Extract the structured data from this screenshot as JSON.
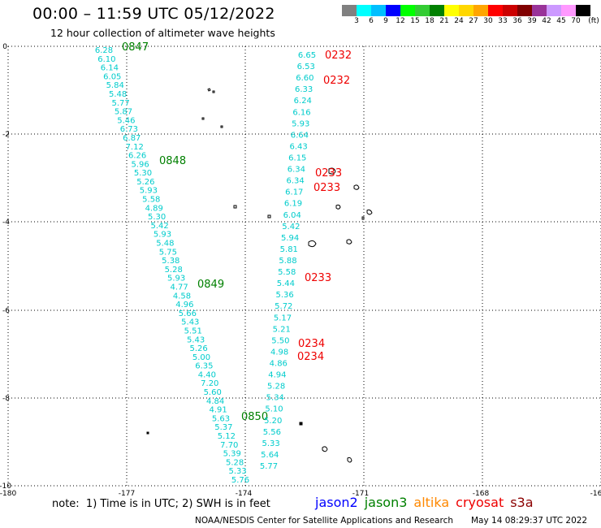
{
  "header": {
    "title": "00:00 – 11:59 UTC 05/12/2022",
    "subtitle": "12 hour collection of altimeter wave heights"
  },
  "legend": {
    "unit": "(ft)",
    "bins": [
      {
        "label": "",
        "color": "#808080"
      },
      {
        "label": "3",
        "color": "#00ffff"
      },
      {
        "label": "6",
        "color": "#00bfff"
      },
      {
        "label": "9",
        "color": "#0000ff"
      },
      {
        "label": "12",
        "color": "#00ff00"
      },
      {
        "label": "15",
        "color": "#33cc33"
      },
      {
        "label": "18",
        "color": "#008000"
      },
      {
        "label": "21",
        "color": "#ffff00"
      },
      {
        "label": "24",
        "color": "#ffd700"
      },
      {
        "label": "27",
        "color": "#ffa500"
      },
      {
        "label": "30",
        "color": "#ff0000"
      },
      {
        "label": "33",
        "color": "#cc0000"
      },
      {
        "label": "36",
        "color": "#800000"
      },
      {
        "label": "39",
        "color": "#993399"
      },
      {
        "label": "42",
        "color": "#cc99ff"
      },
      {
        "label": "45",
        "color": "#ff99ff"
      },
      {
        "label": "70",
        "color": "#000000"
      }
    ]
  },
  "map": {
    "x_ticks": [
      "-180",
      "-177",
      "-174",
      "-171",
      "-168",
      "-16"
    ],
    "y_ticks": [
      "0",
      "-2",
      "-4",
      "-6",
      "-8",
      "-10"
    ],
    "colors": {
      "swh": "#00cccc",
      "jason3_time": "#008000",
      "cryosat_time": "#ee0000"
    },
    "track_west": {
      "values": [
        "6.28",
        "6.10",
        "6.14",
        "6.05",
        "5.84",
        "5.48",
        "5.77",
        "5.87",
        "5.46",
        "6.73",
        "6.87",
        "7.12",
        "6.26",
        "5.96",
        "5.30",
        "5.26",
        "5.93",
        "5.58",
        "4.89",
        "5.30",
        "5.42",
        "5.93",
        "5.48",
        "5.75",
        "5.38",
        "5.28",
        "5.93",
        "4.77",
        "4.58",
        "4.96",
        "5.66",
        "5.43",
        "5.51",
        "5.43",
        "5.26",
        "5.00",
        "6.35",
        "4.40",
        "7.20",
        "5.60",
        "4.84",
        "4.91",
        "5.63",
        "5.37",
        "5.12",
        "7.70",
        "5.39",
        "5.28",
        "5.33",
        "5.76"
      ],
      "times": [
        "0847",
        "0848",
        "0849",
        "0850"
      ]
    },
    "track_east": {
      "values": [
        "6.65",
        "6.53",
        "6.60",
        "6.33",
        "6.24",
        "6.16",
        "5.93",
        "6.64",
        "6.43",
        "6.15",
        "6.34",
        "6.34",
        "6.17",
        "6.19",
        "6.04",
        "5.42",
        "5.94",
        "5.81",
        "5.88",
        "5.58",
        "5.44",
        "5.36",
        "5.72",
        "5.17",
        "5.21",
        "5.50",
        "4.98",
        "4.86",
        "4.94",
        "5.28",
        "5.34",
        "5.10",
        "5.20",
        "5.56",
        "5.33",
        "5.64",
        "5.77"
      ],
      "times": [
        "0232",
        "0232",
        "0233",
        "0233",
        "0233",
        "0234",
        "0234"
      ]
    }
  },
  "footer": {
    "note": "note:  1) Time is in UTC; 2) SWH is in feet",
    "satellites": [
      {
        "name": "jason2",
        "color": "#0000ff"
      },
      {
        "name": "jason3",
        "color": "#008000"
      },
      {
        "name": "altika",
        "color": "#ff8800"
      },
      {
        "name": "cryosat",
        "color": "#ee0000"
      },
      {
        "name": "s3a",
        "color": "#8b0000"
      }
    ],
    "credit": "NOAA/NESDIS Center for Satellite Applications and Research",
    "timestamp": "May 14 08:29:37 UTC 2022"
  }
}
